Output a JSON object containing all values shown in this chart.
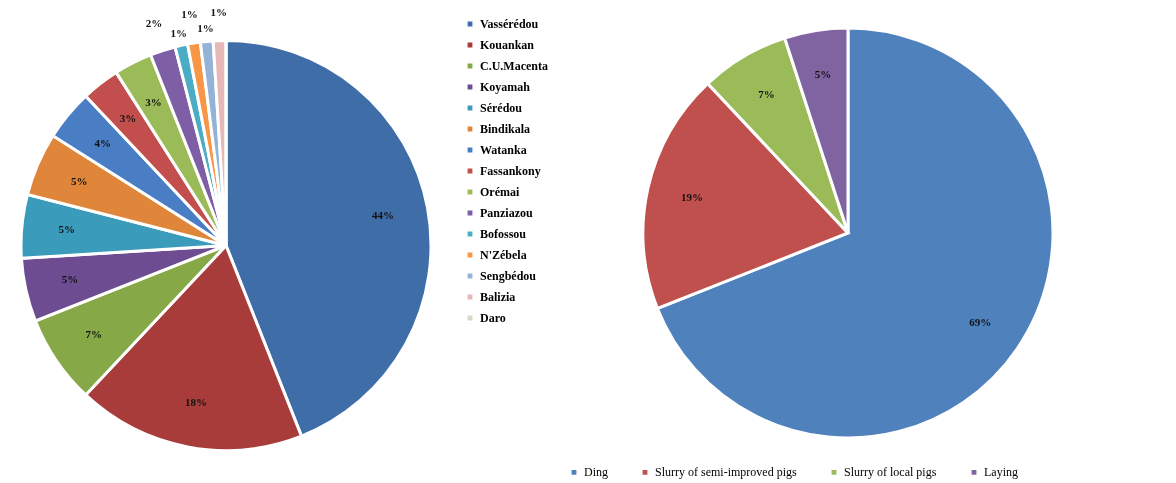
{
  "chart_data": [
    {
      "type": "pie",
      "categories": [
        "Vassérédou",
        "Kouankan",
        "C.U.Macenta",
        "Koyamah",
        "Sérédou",
        "Bindikala",
        "Watanka",
        "Fassankony",
        "Orémai",
        "Panziazou",
        "Bofossou",
        "N'Zébela",
        "Sengbédou",
        "Balizia",
        "Daro"
      ],
      "values": [
        44,
        18,
        7,
        5,
        5,
        5,
        4,
        3,
        3,
        2,
        1,
        1,
        1,
        1,
        0
      ],
      "value_labels": [
        "44%",
        "18%",
        "7%",
        "5%",
        "5%",
        "5%",
        "4%",
        "3%",
        "3%",
        "2%",
        "1%",
        "1%",
        "1%",
        "1%",
        null
      ],
      "colors": [
        "#3e6da8",
        "#a83c3a",
        "#86a846",
        "#6d4c91",
        "#3a9cba",
        "#e0863a",
        "#4a7ec4",
        "#c24f4d",
        "#9bbb59",
        "#7e5ea4",
        "#4bacc6",
        "#f79646",
        "#95b3d7",
        "#e6b9b8",
        "#d9d9c9"
      ],
      "legend": "right"
    },
    {
      "type": "pie",
      "categories": [
        "Ding",
        "Slurry of semi-improved pigs",
        "Slurry of local pigs",
        "Laying"
      ],
      "values": [
        69,
        19,
        7,
        5
      ],
      "value_labels": [
        "69%",
        "19%",
        "7%",
        "5%"
      ],
      "colors": [
        "#4f81bd",
        "#c0504d",
        "#9bbb59",
        "#8064a2"
      ],
      "legend": "bottom"
    }
  ]
}
